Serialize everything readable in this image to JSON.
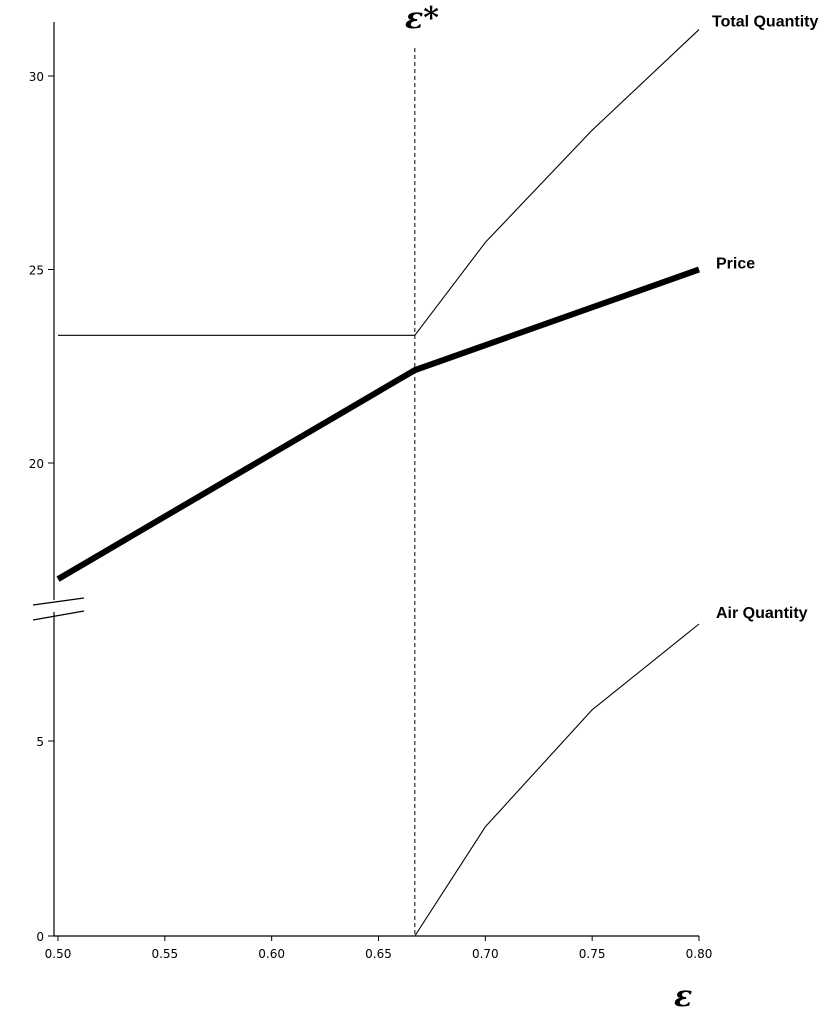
{
  "chart_data": {
    "type": "line",
    "xlabel": "ε",
    "marker_label": "ε*",
    "marker_x": 0.667,
    "xlim": [
      0.5,
      0.8
    ],
    "x_ticks": [
      "0.50",
      "0.55",
      "0.60",
      "0.65",
      "0.70",
      "0.75",
      "0.80"
    ],
    "y_ticks_upper": [
      "20",
      "25",
      "30"
    ],
    "y_ticks_lower": [
      "0",
      "5"
    ],
    "ylim_upper": [
      16.5,
      31.5
    ],
    "ylim_lower": [
      0,
      8
    ],
    "broken_y_axis": true,
    "grid": false,
    "series": [
      {
        "name": "Total Quantity",
        "panel": "upper",
        "color": "#000000",
        "width": "thin",
        "x": [
          0.5,
          0.667,
          0.667,
          0.7,
          0.75,
          0.8
        ],
        "y": [
          23.3,
          23.3,
          23.3,
          25.7,
          28.6,
          31.2
        ]
      },
      {
        "name": "Price",
        "panel": "upper",
        "color": "#000000",
        "width": "thick",
        "x": [
          0.5,
          0.667,
          0.8
        ],
        "y": [
          17.0,
          22.4,
          25.0
        ]
      },
      {
        "name": "Air Quantity",
        "panel": "lower",
        "color": "#000000",
        "width": "thin",
        "x": [
          0.667,
          0.7,
          0.75,
          0.8
        ],
        "y": [
          0.0,
          2.8,
          5.8,
          8.0
        ]
      }
    ]
  }
}
